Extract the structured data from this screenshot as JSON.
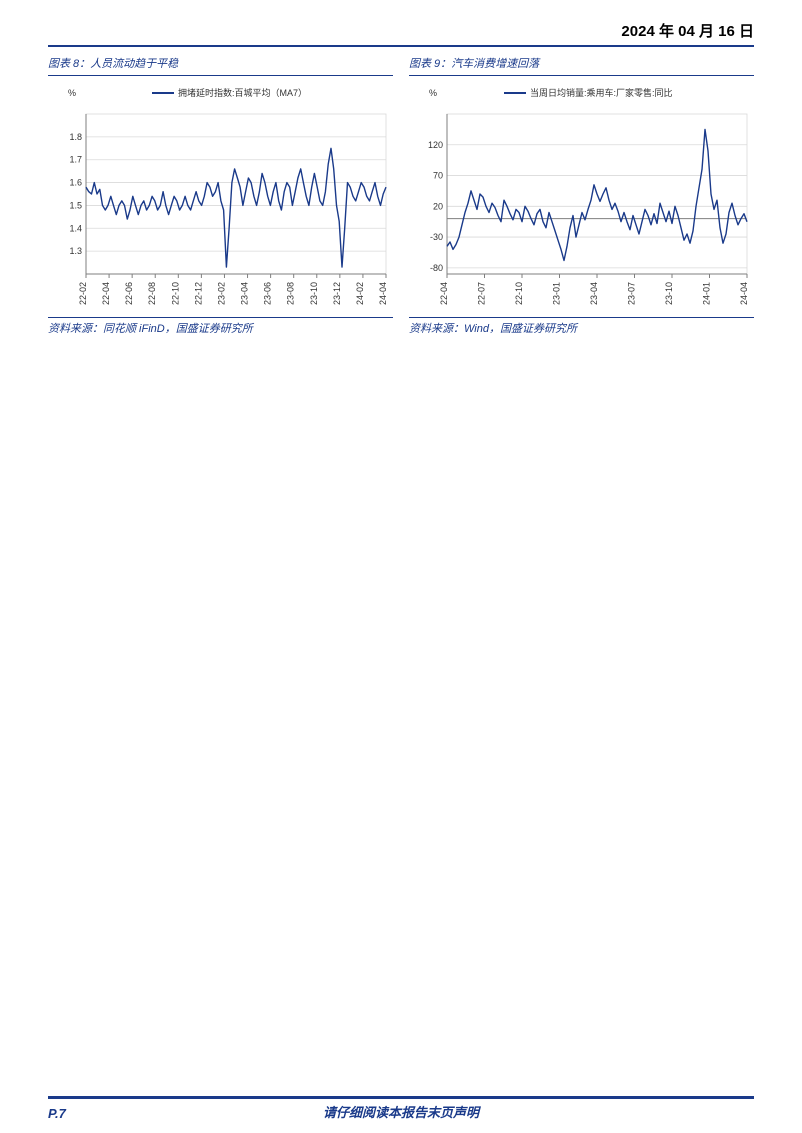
{
  "page_date": "2024 年 04 月 16 日",
  "footer": {
    "page_num": "P.7",
    "disclaimer": "请仔细阅读本报告末页声明"
  },
  "chart8": {
    "figure_label": "图表 8：",
    "title": "人员流动趋于平稳",
    "source": "资料来源：同花顺 iFinD，国盛证券研究所",
    "type": "line",
    "y_unit": "%",
    "legend": "拥堵延时指数:百城平均（MA7）",
    "line_color": "#1a3a8a",
    "axis_color": "#7f7f7f",
    "grid_color": "#d9d9d9",
    "background_color": "#ffffff",
    "title_fontsize": 11,
    "label_fontsize": 9,
    "ylim": [
      1.2,
      1.9
    ],
    "yticks": [
      1.3,
      1.4,
      1.5,
      1.6,
      1.7,
      1.8
    ],
    "xticks": [
      "22-02",
      "22-04",
      "22-06",
      "22-08",
      "22-10",
      "22-12",
      "23-02",
      "23-04",
      "23-06",
      "23-08",
      "23-10",
      "23-12",
      "24-02",
      "24-04"
    ],
    "series": [
      1.58,
      1.56,
      1.55,
      1.6,
      1.55,
      1.57,
      1.5,
      1.48,
      1.5,
      1.54,
      1.5,
      1.46,
      1.5,
      1.52,
      1.5,
      1.44,
      1.48,
      1.54,
      1.5,
      1.46,
      1.5,
      1.52,
      1.48,
      1.5,
      1.54,
      1.52,
      1.48,
      1.5,
      1.56,
      1.5,
      1.46,
      1.5,
      1.54,
      1.52,
      1.48,
      1.5,
      1.54,
      1.5,
      1.48,
      1.52,
      1.56,
      1.52,
      1.5,
      1.54,
      1.6,
      1.58,
      1.54,
      1.56,
      1.6,
      1.52,
      1.48,
      1.23,
      1.4,
      1.6,
      1.66,
      1.62,
      1.58,
      1.5,
      1.56,
      1.62,
      1.6,
      1.54,
      1.5,
      1.56,
      1.64,
      1.6,
      1.54,
      1.5,
      1.56,
      1.6,
      1.52,
      1.48,
      1.56,
      1.6,
      1.58,
      1.5,
      1.56,
      1.62,
      1.66,
      1.6,
      1.54,
      1.5,
      1.58,
      1.64,
      1.58,
      1.52,
      1.5,
      1.56,
      1.68,
      1.75,
      1.66,
      1.5,
      1.43,
      1.23,
      1.4,
      1.6,
      1.58,
      1.54,
      1.52,
      1.56,
      1.6,
      1.58,
      1.54,
      1.52,
      1.56,
      1.6,
      1.54,
      1.5,
      1.55,
      1.58
    ],
    "line_width": 1.4
  },
  "chart9": {
    "figure_label": "图表 9：",
    "title": "汽车消费增速回落",
    "source": "资料来源：Wind，国盛证券研究所",
    "type": "line",
    "y_unit": "%",
    "legend": "当周日均销量:乘用车:厂家零售:同比",
    "line_color": "#1a3a8a",
    "axis_color": "#7f7f7f",
    "grid_color": "#d9d9d9",
    "background_color": "#ffffff",
    "title_fontsize": 11,
    "label_fontsize": 9,
    "ylim": [
      -90,
      170
    ],
    "yticks": [
      -80,
      -30,
      20,
      70,
      120
    ],
    "xticks": [
      "22-04",
      "22-07",
      "22-10",
      "23-01",
      "23-04",
      "23-07",
      "23-10",
      "24-01",
      "24-04"
    ],
    "series": [
      -45,
      -38,
      -50,
      -42,
      -30,
      -10,
      10,
      25,
      45,
      30,
      15,
      40,
      35,
      20,
      10,
      25,
      18,
      5,
      -5,
      30,
      20,
      8,
      -2,
      15,
      10,
      -5,
      20,
      12,
      0,
      -10,
      8,
      15,
      -5,
      -15,
      10,
      -5,
      -20,
      -35,
      -50,
      -68,
      -45,
      -15,
      5,
      -30,
      -10,
      10,
      -2,
      15,
      30,
      55,
      40,
      28,
      40,
      50,
      30,
      15,
      25,
      12,
      -5,
      10,
      -5,
      -18,
      5,
      -10,
      -25,
      -5,
      15,
      5,
      -10,
      8,
      -8,
      25,
      10,
      -5,
      12,
      -8,
      20,
      5,
      -15,
      -35,
      -25,
      -40,
      -20,
      20,
      50,
      80,
      145,
      110,
      40,
      15,
      30,
      -15,
      -40,
      -25,
      10,
      25,
      5,
      -10,
      0,
      8,
      -5
    ],
    "line_width": 1.4
  }
}
